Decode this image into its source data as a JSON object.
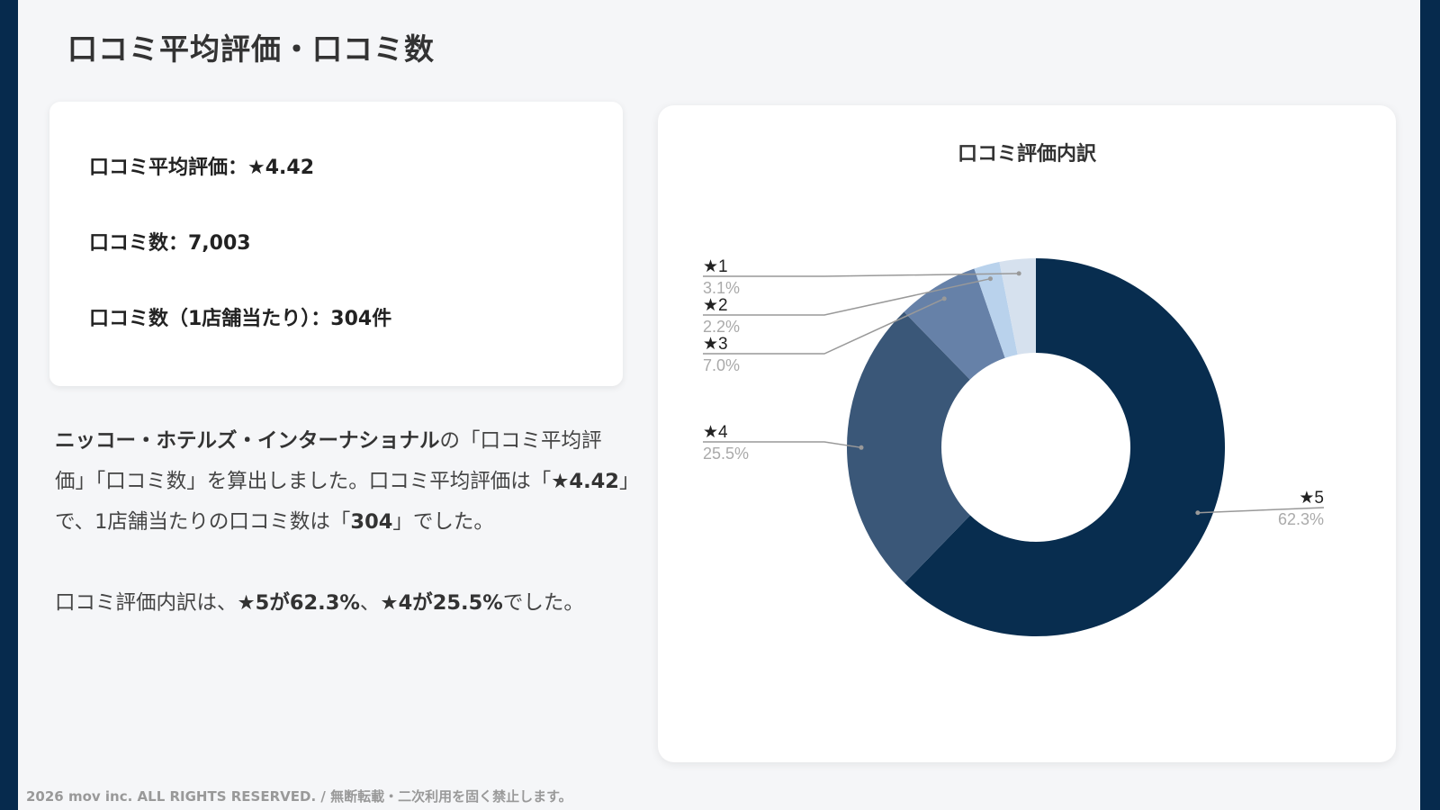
{
  "page": {
    "title": "口コミ平均評価・口コミ数",
    "footer": "2026 mov inc. ALL RIGHTS RESERVED. / 無断転載・二次利用を固く禁止します。"
  },
  "summary": {
    "avg_rating_label": "口コミ平均評価：★4.42",
    "review_count_label": "口コミ数：7,003",
    "per_store_label": "口コミ数（1店舗当たり）：304件"
  },
  "description": {
    "p1_bold_company": "ニッコー・ホテルズ・インターナショナル",
    "p1_text_a": "の「口コミ平均評価」「口コミ数」を算出しました。口コミ平均評価は「",
    "p1_bold_rating": "★4.42",
    "p1_text_b": "」で、1店舗当たりの口コミ数は「",
    "p1_bold_count": "304",
    "p1_text_c": "」でした。",
    "p2_text_a": "口コミ評価内訳は、",
    "p2_bold_a": "★5が62.3%",
    "p2_text_b": "、",
    "p2_bold_b": "★4が25.5%",
    "p2_text_c": "でした。"
  },
  "chart_data": {
    "type": "pie",
    "subtype": "donut",
    "title": "口コミ評価内訳",
    "categories": [
      "★5",
      "★4",
      "★3",
      "★2",
      "★1"
    ],
    "values": [
      62.3,
      25.5,
      7.0,
      2.2,
      3.1
    ],
    "labels": [
      "62.3%",
      "25.5%",
      "7.0%",
      "2.2%",
      "3.1%"
    ],
    "colors": [
      "#082d4f",
      "#3a5778",
      "#6681a8",
      "#b9d2ec",
      "#d6e1ee"
    ],
    "start_angle": "12 o'clock",
    "direction": "clockwise",
    "legend": "callout labels with leader lines",
    "inner_radius_ratio": 0.5
  }
}
